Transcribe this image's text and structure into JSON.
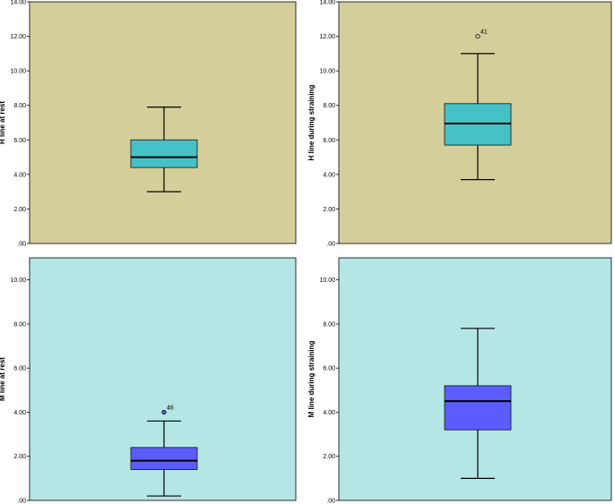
{
  "colors": {
    "top_plot_bg": "#d4cf9a",
    "bottom_plot_bg": "#b4e6e6",
    "top_box_fill": "#46c2c6",
    "bottom_box_fill": "#5a5cfb",
    "bottom_outlier_fill": "#4466ee",
    "axis": "#000000"
  },
  "chart_data": [
    {
      "type": "boxplot",
      "ylabel": "H line at rest",
      "ylim": [
        0,
        14
      ],
      "ticks": [
        ".00",
        "2.00",
        "4.00",
        "6.00",
        "8.00",
        "10.00",
        "12.00",
        "14.00"
      ],
      "tick_values": [
        0,
        2,
        4,
        6,
        8,
        10,
        12,
        14
      ],
      "box": {
        "min": 3.0,
        "q1": 4.4,
        "median": 5.0,
        "q3": 6.0,
        "max": 7.9
      },
      "outliers": []
    },
    {
      "type": "boxplot",
      "ylabel": "H line during straining",
      "ylim": [
        0,
        14
      ],
      "ticks": [
        ".00",
        "2.00",
        "4.00",
        "6.00",
        "8.00",
        "10.00",
        "12.00",
        "14.00"
      ],
      "tick_values": [
        0,
        2,
        4,
        6,
        8,
        10,
        12,
        14
      ],
      "box": {
        "min": 3.7,
        "q1": 5.7,
        "median": 6.95,
        "q3": 8.1,
        "max": 11.0
      },
      "outliers": [
        {
          "value": 12.0,
          "label": "41",
          "style": "open"
        }
      ]
    },
    {
      "type": "boxplot",
      "ylabel": "M line at rest",
      "ylim": [
        0,
        11
      ],
      "ticks": [
        ".00",
        "2.00",
        "4.00",
        "6.00",
        "8.00",
        "10.00"
      ],
      "tick_values": [
        0,
        2,
        4,
        6,
        8,
        10
      ],
      "box": {
        "min": 0.2,
        "q1": 1.4,
        "median": 1.8,
        "q3": 2.4,
        "max": 3.6
      },
      "outliers": [
        {
          "value": 4.0,
          "label": "46",
          "style": "filled"
        }
      ]
    },
    {
      "type": "boxplot",
      "ylabel": "M line during straining",
      "ylim": [
        0,
        11
      ],
      "ticks": [
        ".00",
        "2.00",
        "4.00",
        "6.00",
        "8.00",
        "10.00"
      ],
      "tick_values": [
        0,
        2,
        4,
        6,
        8,
        10
      ],
      "box": {
        "min": 1.0,
        "q1": 3.2,
        "median": 4.5,
        "q3": 5.2,
        "max": 7.8
      },
      "outliers": []
    }
  ]
}
